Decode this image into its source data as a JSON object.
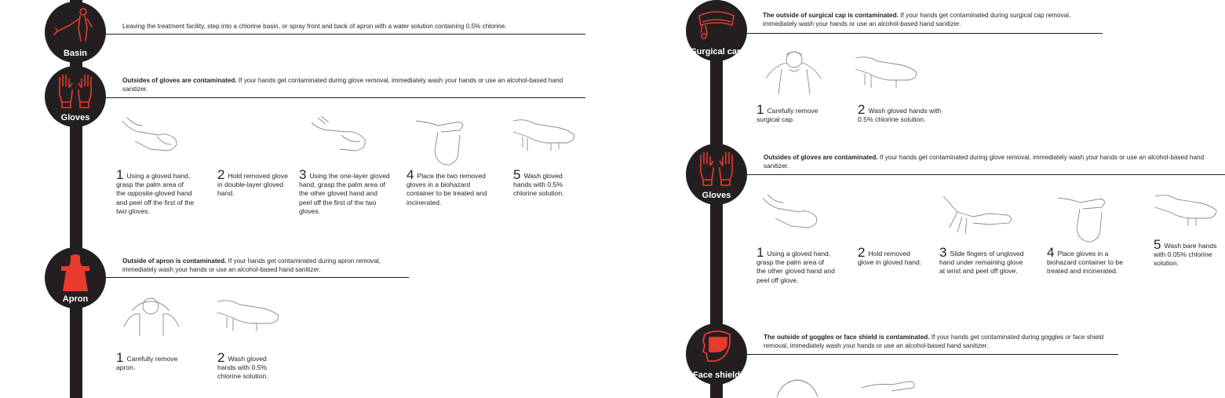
{
  "colors": {
    "accent": "#e63b2e",
    "dark": "#231f20",
    "background": "#ffffff"
  },
  "left": {
    "basin": {
      "label": "Basin",
      "icon": "person-spraying-icon",
      "instruction": "Leaving the treatment facility, step into a chlorine basin, or spray front and back of apron with a water solution containing 0.5% chlorine."
    },
    "gloves": {
      "label": "Gloves",
      "icon": "gloves-icon",
      "warning_bold": "Outsides of gloves are contaminated.",
      "warning_rest": " If your hands get contaminated during glove removal, immediately wash your hands or use an alcohol-based hand sanitizer.",
      "steps": [
        {
          "num": "1",
          "text": "Using a gloved hand, grasp the palm area of the opposite-gloved hand and peel off the first of the two gloves."
        },
        {
          "num": "2",
          "text": "Hold removed glove in double-layer gloved hand."
        },
        {
          "num": "3",
          "text": "Using the one-layer gloved hand, grasp the palm area of the other gloved hand and peel off the first of the two gloves."
        },
        {
          "num": "4",
          "text": "Place the two removed gloves in a biohazard container to be treated and incinerated."
        },
        {
          "num": "5",
          "text": "Wash gloved hands with 0.5% chlorine solution."
        }
      ]
    },
    "apron": {
      "label": "Apron",
      "icon": "apron-icon",
      "warning_bold": "Outside of apron is contaminated.",
      "warning_rest": " If your hands get contaminated during apron removal, immediately wash your hands or use an alcohol-based hand sanitizer.",
      "steps": [
        {
          "num": "1",
          "text": "Carefully remove apron."
        },
        {
          "num": "2",
          "text": "Wash gloved hands with 0.5% chlorine solution."
        }
      ]
    }
  },
  "right": {
    "cap": {
      "label": "Surgical cap",
      "icon": "surgical-cap-icon",
      "warning_bold": "The outside of surgical cap is contaminated.",
      "warning_rest": " If your hands get contaminated during surgical cap removal, immediately wash your hands or use an alcohol-based hand sanitizer.",
      "steps": [
        {
          "num": "1",
          "text": "Carefully remove surgical cap."
        },
        {
          "num": "2",
          "text": "Wash gloved hands with 0.5% chlorine solution."
        }
      ]
    },
    "gloves": {
      "label": "Gloves",
      "icon": "gloves-icon",
      "warning_bold": "Outsides of gloves are contaminated.",
      "warning_rest": " If your hands get contaminated during glove removal, immediately wash your hands or use an alcohol-based hand sanitizer.",
      "steps": [
        {
          "num": "1",
          "text": "Using a gloved hand, grasp the palm area of the other gloved hand and peel off glove."
        },
        {
          "num": "2",
          "text": "Hold removed glove in gloved hand."
        },
        {
          "num": "3",
          "text": "Slide fingers of ungloved hand under remaining glove at wrist and peel off glove."
        },
        {
          "num": "4",
          "text": "Place gloves in a biohazard container to be treated and incinerated."
        },
        {
          "num": "5",
          "text": "Wash bare hands with 0.05% chlorine solution."
        }
      ]
    },
    "face_shield": {
      "label": "Face shield",
      "icon": "face-shield-icon",
      "warning_bold": "The outside of goggles or face shield is contaminated.",
      "warning_rest": " If your hands get contaminated during goggles or face shield removal, immediately wash your hands or use an alcohol-based hand sanitizer."
    }
  }
}
